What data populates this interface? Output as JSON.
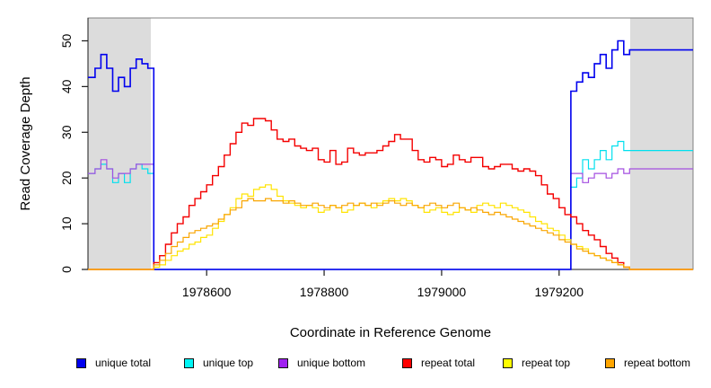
{
  "chart_data": {
    "type": "line",
    "title": "",
    "xlabel": "Coordinate in Reference Genome",
    "ylabel": "Read Coverage Depth",
    "xlim": [
      1978398,
      1979428
    ],
    "ylim": [
      0,
      55
    ],
    "x_ticks": [
      1978600,
      1978800,
      1979000,
      1979200
    ],
    "y_ticks": [
      0,
      10,
      20,
      30,
      40,
      50
    ],
    "x_start": 1978400,
    "x_step": 10,
    "grid": false,
    "legend_position": "bottom",
    "shaded_regions": [
      {
        "name": "unique-region-left",
        "x0": 1978398,
        "x1": 1978505,
        "color": "#DCDCDC"
      },
      {
        "name": "unique-region-right",
        "x0": 1979321,
        "x1": 1979428,
        "color": "#DCDCDC"
      }
    ],
    "draw_order": [
      1,
      2,
      0,
      3,
      4,
      5
    ],
    "series": [
      {
        "name": "unique total",
        "color": "#0000EE",
        "lw": 1.6,
        "values": [
          42,
          44,
          47,
          44,
          39,
          42,
          40,
          44,
          46,
          45,
          44,
          0,
          0,
          0,
          0,
          0,
          0,
          0,
          0,
          0,
          0,
          0,
          0,
          0,
          0,
          0,
          0,
          0,
          0,
          0,
          0,
          0,
          0,
          0,
          0,
          0,
          0,
          0,
          0,
          0,
          0,
          0,
          0,
          0,
          0,
          0,
          0,
          0,
          0,
          0,
          0,
          0,
          0,
          0,
          0,
          0,
          0,
          0,
          0,
          0,
          0,
          0,
          0,
          0,
          0,
          0,
          0,
          0,
          0,
          0,
          0,
          0,
          0,
          0,
          0,
          0,
          0,
          0,
          0,
          0,
          0,
          0,
          39,
          41,
          43,
          42,
          45,
          47,
          44,
          48,
          50,
          47,
          48
        ]
      },
      {
        "name": "unique top",
        "color": "#00E0EE",
        "lw": 1.2,
        "values": [
          21,
          22,
          23,
          22,
          19,
          21,
          19,
          22,
          23,
          22,
          21,
          0,
          0,
          0,
          0,
          0,
          0,
          0,
          0,
          0,
          0,
          0,
          0,
          0,
          0,
          0,
          0,
          0,
          0,
          0,
          0,
          0,
          0,
          0,
          0,
          0,
          0,
          0,
          0,
          0,
          0,
          0,
          0,
          0,
          0,
          0,
          0,
          0,
          0,
          0,
          0,
          0,
          0,
          0,
          0,
          0,
          0,
          0,
          0,
          0,
          0,
          0,
          0,
          0,
          0,
          0,
          0,
          0,
          0,
          0,
          0,
          0,
          0,
          0,
          0,
          0,
          0,
          0,
          0,
          0,
          0,
          0,
          18,
          20,
          24,
          22,
          24,
          26,
          24,
          27,
          28,
          26,
          26
        ]
      },
      {
        "name": "unique bottom",
        "color": "#A44FE0",
        "lw": 1.2,
        "values": [
          21,
          22,
          24,
          22,
          20,
          21,
          21,
          22,
          23,
          23,
          23,
          0,
          0,
          0,
          0,
          0,
          0,
          0,
          0,
          0,
          0,
          0,
          0,
          0,
          0,
          0,
          0,
          0,
          0,
          0,
          0,
          0,
          0,
          0,
          0,
          0,
          0,
          0,
          0,
          0,
          0,
          0,
          0,
          0,
          0,
          0,
          0,
          0,
          0,
          0,
          0,
          0,
          0,
          0,
          0,
          0,
          0,
          0,
          0,
          0,
          0,
          0,
          0,
          0,
          0,
          0,
          0,
          0,
          0,
          0,
          0,
          0,
          0,
          0,
          0,
          0,
          0,
          0,
          0,
          0,
          0,
          0,
          21,
          21,
          19,
          20,
          21,
          21,
          20,
          21,
          22,
          21,
          22
        ]
      },
      {
        "name": "repeat total",
        "color": "#F40000",
        "lw": 1.4,
        "values": [
          0,
          0,
          0,
          0,
          0,
          0,
          0,
          0,
          0,
          0,
          0,
          1.5,
          3,
          5.5,
          8,
          10,
          11.5,
          14,
          15.5,
          17,
          18.5,
          20.5,
          22.5,
          25,
          27.5,
          30,
          32,
          31.5,
          33,
          33,
          32.5,
          30.5,
          28.5,
          28,
          28.5,
          27,
          26.5,
          26,
          26.5,
          24,
          23.5,
          26,
          23,
          23.5,
          26.5,
          25.5,
          25,
          25.5,
          25.5,
          26,
          27,
          28,
          29.5,
          28.5,
          28.5,
          26,
          24,
          23.5,
          24.5,
          24,
          22.5,
          23,
          25,
          24,
          23.5,
          24.5,
          24.5,
          22.5,
          22,
          22.5,
          23,
          23,
          22,
          21.5,
          22,
          21.5,
          20.5,
          18.5,
          16.5,
          15.5,
          13.5,
          12,
          11.5,
          10,
          8.5,
          7.5,
          6.5,
          5,
          3.5,
          2.5,
          1.5,
          0.5,
          0,
          0,
          0,
          0,
          0,
          0,
          0,
          0,
          0,
          0,
          0
        ]
      },
      {
        "name": "repeat top",
        "color": "#FFE400",
        "lw": 1.2,
        "values": [
          0,
          0,
          0,
          0,
          0,
          0,
          0,
          0,
          0,
          0,
          0,
          0.5,
          1,
          2,
          3,
          4,
          4.5,
          5.5,
          6,
          7,
          7.5,
          9,
          10.5,
          12,
          13.5,
          15.5,
          16.5,
          16,
          17.5,
          18,
          18.5,
          17.5,
          16,
          15,
          14.5,
          14,
          13.5,
          14,
          13.5,
          12.5,
          13,
          14,
          13.5,
          12.5,
          13,
          14,
          14.5,
          14,
          13.5,
          14.5,
          15,
          15.5,
          15,
          15.5,
          15,
          14,
          13.5,
          12.5,
          13,
          13.5,
          12.5,
          12,
          12.5,
          13.5,
          13,
          12.5,
          14,
          14.5,
          14,
          13.5,
          14.5,
          14,
          13.5,
          13,
          12.5,
          11.5,
          10.5,
          10,
          9,
          8.5,
          7.5,
          6.5,
          5.5,
          5,
          4.5,
          3.5,
          3,
          2.5,
          2,
          1.5,
          1,
          0.5,
          0,
          0,
          0,
          0,
          0,
          0,
          0,
          0,
          0,
          0,
          0
        ]
      },
      {
        "name": "repeat bottom",
        "color": "#F9A602",
        "lw": 1.2,
        "values": [
          0,
          0,
          0,
          0,
          0,
          0,
          0,
          0,
          0,
          0,
          0,
          1,
          2,
          3.5,
          5,
          6,
          7,
          8,
          8.5,
          9,
          9.5,
          10,
          11,
          12,
          13,
          13.5,
          15,
          15.5,
          15,
          15,
          15.5,
          15,
          15,
          14.5,
          15,
          14.5,
          14,
          14,
          14.5,
          14,
          13.5,
          14,
          13.5,
          14,
          14.5,
          14,
          14.5,
          14,
          14.5,
          14,
          14.5,
          15,
          14.5,
          14,
          14.5,
          14,
          13.5,
          14,
          14.5,
          14,
          13.5,
          14,
          14.5,
          13.5,
          13,
          13.5,
          13,
          12.5,
          12,
          12.5,
          12,
          11.5,
          11,
          10.5,
          10,
          9.5,
          9,
          8.5,
          8,
          7.5,
          6.5,
          6,
          5.5,
          4.5,
          4,
          3.5,
          3,
          2.5,
          2,
          1.5,
          1,
          0.5,
          0,
          0,
          0,
          0,
          0,
          0,
          0,
          0,
          0,
          0,
          0
        ]
      }
    ],
    "legend": [
      {
        "label": "unique total",
        "color": "#0000EE"
      },
      {
        "label": "unique top",
        "color": "#00F5F5"
      },
      {
        "label": "unique bottom",
        "color": "#A020F0"
      },
      {
        "label": "repeat total",
        "color": "#FF0000"
      },
      {
        "label": "repeat top",
        "color": "#FFFF00"
      },
      {
        "label": "repeat bottom",
        "color": "#FFA500"
      }
    ]
  }
}
